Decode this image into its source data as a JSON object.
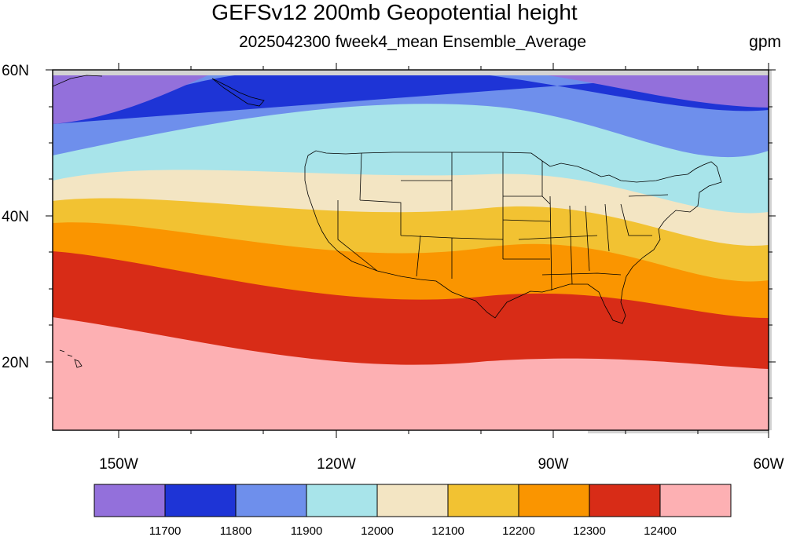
{
  "title": "GEFSv12 200mb Geopotential height",
  "subtitle": "2025042300 fweek4_mean Ensemble_Average",
  "units": "gpm",
  "lat_labels": [
    "60N",
    "40N",
    "20N"
  ],
  "lon_labels": [
    "150W",
    "120W",
    "90W",
    "60W"
  ],
  "colorbar": {
    "colors": [
      "#9370DB",
      "#1E34D6",
      "#6E8FEC",
      "#A8E4EA",
      "#F3E5C3",
      "#F2C232",
      "#FA9500",
      "#D82C17",
      "#FDB0B3"
    ],
    "labels": [
      "11700",
      "11800",
      "11900",
      "12000",
      "12100",
      "12200",
      "12300",
      "12400"
    ]
  },
  "colors": {
    "coastline": "#000000",
    "land_mask": "#d3d3d3"
  }
}
